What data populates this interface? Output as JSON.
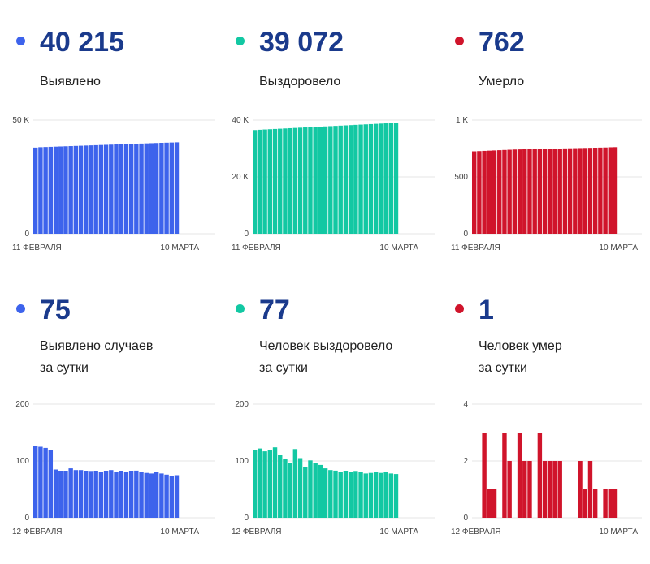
{
  "chart_data": [
    {
      "type": "bar",
      "value": "40 215",
      "label": [
        "Выявлено"
      ],
      "color": "#3d63ec",
      "yticks": [
        {
          "v": 0,
          "t": "0"
        },
        {
          "v": 50000,
          "t": "50 K"
        }
      ],
      "ylim": [
        0,
        50000
      ],
      "x_first": "11 ФЕВРАЛЯ",
      "x_last": "10 МАРТА",
      "values": [
        37900,
        38080,
        38160,
        38240,
        38320,
        38400,
        38480,
        38560,
        38640,
        38720,
        38800,
        38880,
        38960,
        39040,
        39120,
        39200,
        39280,
        39360,
        39440,
        39520,
        39600,
        39680,
        39760,
        39840,
        39920,
        40000,
        40060,
        40130,
        40215
      ]
    },
    {
      "type": "bar",
      "value": "39 072",
      "label": [
        "Выздоровело"
      ],
      "color": "#12c8a3",
      "yticks": [
        {
          "v": 0,
          "t": "0"
        },
        {
          "v": 20000,
          "t": "20 K"
        },
        {
          "v": 40000,
          "t": "40 K"
        }
      ],
      "ylim": [
        0,
        40000
      ],
      "x_first": "11 ФЕВРАЛЯ",
      "x_last": "10 МАРТА",
      "values": [
        36500,
        36600,
        36700,
        36790,
        36880,
        36970,
        37060,
        37150,
        37240,
        37330,
        37420,
        37510,
        37600,
        37690,
        37780,
        37870,
        37960,
        38050,
        38140,
        38230,
        38320,
        38410,
        38500,
        38590,
        38680,
        38770,
        38850,
        38960,
        39072
      ]
    },
    {
      "type": "bar",
      "value": "762",
      "label": [
        "Умерло"
      ],
      "color": "#d0142b",
      "yticks": [
        {
          "v": 0,
          "t": "0"
        },
        {
          "v": 500,
          "t": "500"
        },
        {
          "v": 1000,
          "t": "1 K"
        }
      ],
      "ylim": [
        0,
        1000
      ],
      "x_first": "11 ФЕВРАЛЯ",
      "x_last": "10 МАРТА",
      "values": [
        725,
        727,
        729,
        731,
        733,
        735,
        737,
        739,
        741,
        742,
        743,
        744,
        745,
        746,
        747,
        748,
        749,
        750,
        751,
        752,
        753,
        754,
        755,
        756,
        757,
        758,
        759,
        761,
        762
      ]
    },
    {
      "type": "bar",
      "value": "75",
      "label": [
        "Выявлено случаев",
        "за сутки"
      ],
      "color": "#3d63ec",
      "yticks": [
        {
          "v": 0,
          "t": "0"
        },
        {
          "v": 100,
          "t": "100"
        },
        {
          "v": 200,
          "t": "200"
        }
      ],
      "ylim": [
        0,
        200
      ],
      "x_first": "12 ФЕВРАЛЯ",
      "x_last": "10 МАРТА",
      "values": [
        126,
        125,
        123,
        120,
        85,
        82,
        82,
        87,
        84,
        84,
        82,
        81,
        82,
        80,
        82,
        84,
        80,
        82,
        80,
        82,
        83,
        80,
        79,
        78,
        80,
        78,
        76,
        73,
        75
      ]
    },
    {
      "type": "bar",
      "value": "77",
      "label": [
        "Человек выздоровело",
        "за сутки"
      ],
      "color": "#12c8a3",
      "yticks": [
        {
          "v": 0,
          "t": "0"
        },
        {
          "v": 100,
          "t": "100"
        },
        {
          "v": 200,
          "t": "200"
        }
      ],
      "ylim": [
        0,
        200
      ],
      "x_first": "12 ФЕВРАЛЯ",
      "x_last": "10 МАРТА",
      "values": [
        120,
        122,
        117,
        119,
        124,
        110,
        104,
        96,
        121,
        105,
        89,
        101,
        96,
        93,
        87,
        84,
        83,
        80,
        82,
        80,
        81,
        80,
        78,
        79,
        80,
        79,
        80,
        78,
        77
      ]
    },
    {
      "type": "bar",
      "value": "1",
      "label": [
        "Человек умер",
        "за сутки"
      ],
      "color": "#d0142b",
      "yticks": [
        {
          "v": 0,
          "t": "0"
        },
        {
          "v": 2,
          "t": "2"
        },
        {
          "v": 4,
          "t": "4"
        }
      ],
      "ylim": [
        0,
        4
      ],
      "x_first": "12 ФЕВРАЛЯ",
      "x_last": "10 МАРТА",
      "values": [
        0,
        0,
        3,
        1,
        1,
        0,
        3,
        2,
        0,
        3,
        2,
        2,
        0,
        3,
        2,
        2,
        2,
        2,
        0,
        0,
        0,
        2,
        1,
        2,
        1,
        0,
        1,
        1,
        1
      ]
    }
  ]
}
